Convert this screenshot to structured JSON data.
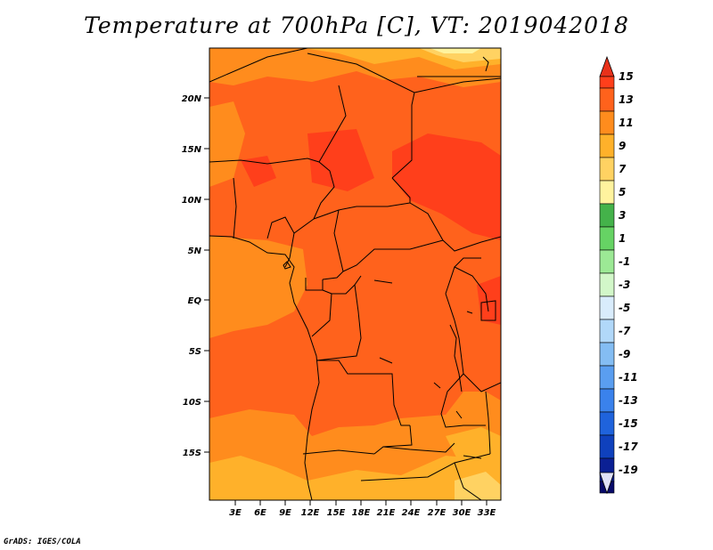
{
  "title": "Temperature at 700hPa [C], VT: 2019042018",
  "credit": "GrADS: IGES/COLA",
  "map": {
    "lat_labels": [
      "20N",
      "15N",
      "10N",
      "5N",
      "EQ",
      "5S",
      "10S",
      "15S"
    ],
    "lon_labels": [
      "3E",
      "6E",
      "9E",
      "12E",
      "15E",
      "18E",
      "21E",
      "24E",
      "27E",
      "30E",
      "33E"
    ]
  },
  "colorbar": {
    "labels": [
      "15",
      "13",
      "11",
      "9",
      "7",
      "5",
      "3",
      "1",
      "-1",
      "-3",
      "-5",
      "-7",
      "-9",
      "-11",
      "-13",
      "-15",
      "-17",
      "-19"
    ],
    "top_arrow_color": "#e8311a",
    "bottom_arrow_color": "#e0e2f8",
    "colors": [
      "#ff3f1b",
      "#ff621c",
      "#ff8c1d",
      "#ffb12a",
      "#ffd262",
      "#fff39e",
      "#44b24a",
      "#66d364",
      "#9ce995",
      "#d2f7c9",
      "#d9ecfc",
      "#b1d8f9",
      "#84bdf3",
      "#5a9ef0",
      "#3a82ec",
      "#1f63dc",
      "#0f41bd",
      "#0b2094",
      "#080a6a"
    ]
  }
}
